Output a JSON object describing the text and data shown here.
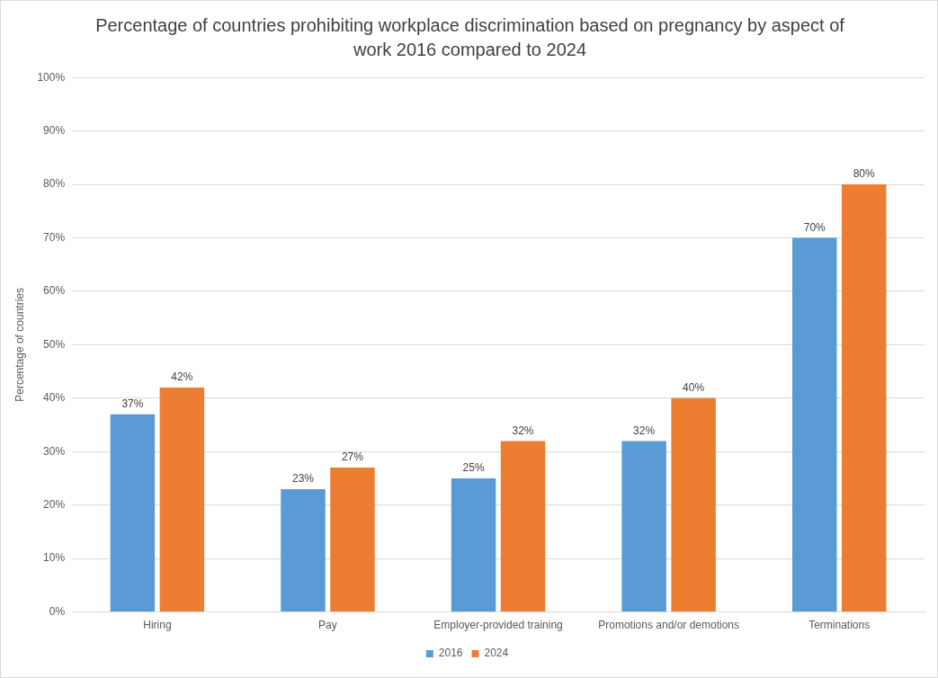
{
  "chart_data": {
    "type": "bar",
    "title": "Percentage of countries prohibiting workplace discrimination based on pregnancy by aspect of work 2016 compared to 2024",
    "ylabel": "Percentage of countries",
    "categories": [
      "Hiring",
      "Pay",
      "Employer-provided training",
      "Promotions and/or demotions",
      "Terminations"
    ],
    "series": [
      {
        "name": "2016",
        "color": "#5b9bd5",
        "values": [
          37,
          23,
          25,
          32,
          70
        ],
        "value_labels": [
          "37%",
          "23%",
          "25%",
          "32%",
          "70%"
        ]
      },
      {
        "name": "2024",
        "color": "#ed7d31",
        "values": [
          42,
          27,
          32,
          40,
          80
        ],
        "value_labels": [
          "42%",
          "27%",
          "32%",
          "40%",
          "80%"
        ]
      }
    ],
    "ylim": [
      0,
      100
    ],
    "yticks": [
      {
        "value": 0,
        "label": "0%"
      },
      {
        "value": 10,
        "label": "10%"
      },
      {
        "value": 20,
        "label": "20%"
      },
      {
        "value": 30,
        "label": "30%"
      },
      {
        "value": 40,
        "label": "40%"
      },
      {
        "value": 50,
        "label": "50%"
      },
      {
        "value": 60,
        "label": "60%"
      },
      {
        "value": 70,
        "label": "70%"
      },
      {
        "value": 80,
        "label": "80%"
      },
      {
        "value": 90,
        "label": "90%"
      },
      {
        "value": 100,
        "label": "100%"
      }
    ],
    "grid": "y",
    "legend": "bottom"
  }
}
